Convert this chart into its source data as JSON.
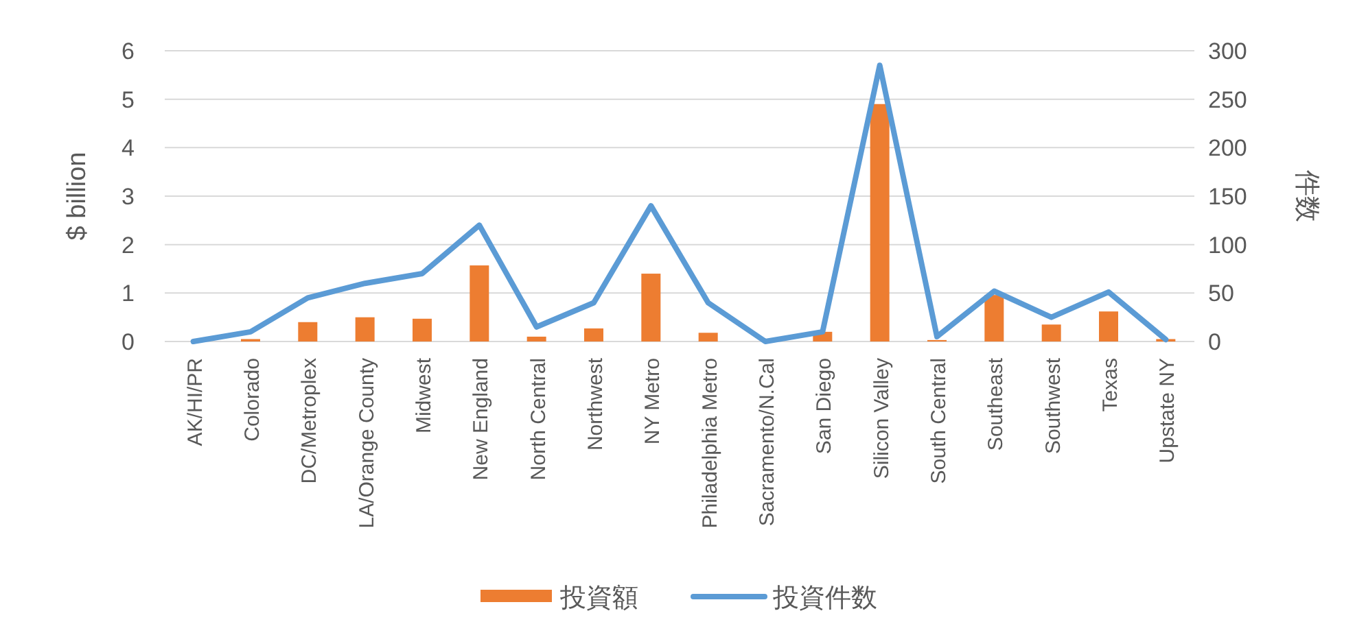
{
  "chart_data": {
    "type": "bar",
    "categories": [
      "AK/HI/PR",
      "Colorado",
      "DC/Metroplex",
      "LA/Orange County",
      "Midwest",
      "New England",
      "North Central",
      "Northwest",
      "NY Metro",
      "Philadelphia Metro",
      "Sacramento/N.Cal",
      "San Diego",
      "Silicon Valley",
      "South Central",
      "Southeast",
      "Southwest",
      "Texas",
      "Upstate NY"
    ],
    "series": [
      {
        "name": "投資額",
        "color": "#ed7d31",
        "values": [
          0,
          0.05,
          0.4,
          0.5,
          0.47,
          1.57,
          0.1,
          0.27,
          1.4,
          0.18,
          0,
          0.2,
          4.9,
          0.03,
          0.96,
          0.35,
          0.62,
          0.05
        ]
      },
      {
        "name": "投資件数",
        "type": "line",
        "axis": "y2",
        "color": "#5b9bd5",
        "values": [
          0,
          10,
          45,
          60,
          70,
          120,
          15,
          40,
          140,
          40,
          0,
          10,
          285,
          5,
          52,
          25,
          51,
          2
        ]
      }
    ],
    "ylabel": "$ billion",
    "y2label": "件数",
    "ylim": [
      0,
      6
    ],
    "yticks": [
      0,
      1,
      2,
      3,
      4,
      5,
      6
    ],
    "y2lim": [
      0,
      300
    ],
    "y2ticks": [
      0,
      50,
      100,
      150,
      200,
      250,
      300
    ],
    "grid": "y",
    "legend": "bottom"
  }
}
